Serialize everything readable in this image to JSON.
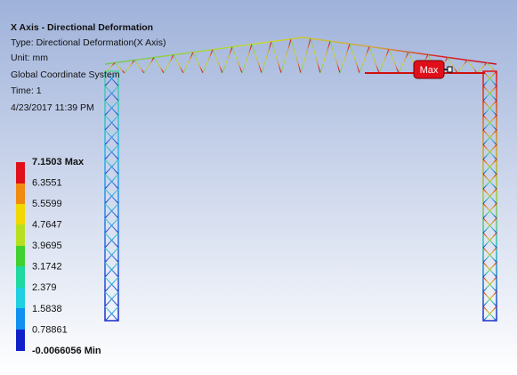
{
  "header": {
    "title": "X Axis - Directional Deformation",
    "type": "Type: Directional Deformation(X Axis)",
    "unit": "Unit: mm",
    "coordinate_system": "Global Coordinate System",
    "time": "Time: 1",
    "date": "4/23/2017 11:39 PM"
  },
  "legend": {
    "labels": [
      "7.1503 Max",
      "6.3551",
      "5.5599",
      "4.7647",
      "3.9695",
      "3.1742",
      "2.379",
      "1.5838",
      "0.78861",
      "-0.0066056 Min"
    ]
  },
  "model": {
    "max_probe": "Max"
  }
}
